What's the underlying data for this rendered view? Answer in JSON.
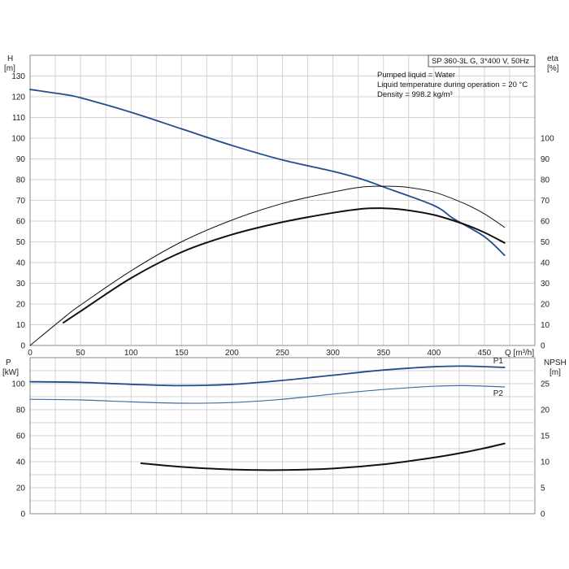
{
  "chart_data": [
    {
      "type": "line",
      "title": "SP 360-3L G, 3*400 V, 50Hz",
      "info_lines": [
        "Pumped liquid = Water",
        "Liquid temperature during operation = 20 °C",
        "Density = 998.2 kg/m³"
      ],
      "xlabel": "Q [m³/h]",
      "xlim": [
        0,
        500
      ],
      "x_ticks": [
        0,
        50,
        100,
        150,
        200,
        250,
        300,
        350,
        400,
        450
      ],
      "left_axis": {
        "label_line1": "H",
        "label_line2": "[m]",
        "lim": [
          0,
          140
        ],
        "ticks": [
          0,
          10,
          20,
          30,
          40,
          50,
          60,
          70,
          80,
          90,
          100,
          110,
          120,
          130
        ]
      },
      "right_axis": {
        "label_line1": "eta",
        "label_line2": "[%]",
        "lim": [
          0,
          140
        ],
        "ticks": [
          0,
          10,
          20,
          30,
          40,
          50,
          60,
          70,
          80,
          90,
          100
        ]
      },
      "grid": true,
      "series": [
        {
          "role": "head",
          "axis": "left",
          "color": "#1f4e8c",
          "width": 1.8,
          "points": [
            [
              0,
              123.5
            ],
            [
              35,
              121
            ],
            [
              50,
              119.5
            ],
            [
              100,
              112.5
            ],
            [
              150,
              104.5
            ],
            [
              200,
              96.5
            ],
            [
              250,
              89.5
            ],
            [
              300,
              84
            ],
            [
              330,
              80
            ],
            [
              350,
              76.5
            ],
            [
              400,
              67.5
            ],
            [
              420,
              61
            ],
            [
              450,
              52.5
            ],
            [
              470,
              43.5
            ]
          ]
        },
        {
          "role": "eta-thin",
          "axis": "right",
          "color": "#111111",
          "width": 1,
          "points": [
            [
              0,
              0
            ],
            [
              35,
              14
            ],
            [
              50,
              19.5
            ],
            [
              100,
              36
            ],
            [
              150,
              50
            ],
            [
              200,
              60.5
            ],
            [
              250,
              68.5
            ],
            [
              300,
              74
            ],
            [
              330,
              76.5
            ],
            [
              350,
              76.8
            ],
            [
              370,
              76.5
            ],
            [
              400,
              74
            ],
            [
              430,
              68.5
            ],
            [
              450,
              63.5
            ],
            [
              470,
              57
            ]
          ]
        },
        {
          "role": "eta-thick",
          "axis": "right",
          "color": "#111111",
          "width": 2,
          "points": [
            [
              33,
              11
            ],
            [
              50,
              16.5
            ],
            [
              100,
              32.5
            ],
            [
              150,
              45
            ],
            [
              200,
              53.5
            ],
            [
              250,
              59.5
            ],
            [
              300,
              64
            ],
            [
              330,
              66
            ],
            [
              350,
              66.2
            ],
            [
              370,
              65.5
            ],
            [
              400,
              63
            ],
            [
              430,
              58.5
            ],
            [
              450,
              54.5
            ],
            [
              470,
              49.5
            ]
          ]
        }
      ]
    },
    {
      "type": "line",
      "xlim": [
        0,
        500
      ],
      "left_axis": {
        "label_line1": "P",
        "label_line2": "[kW]",
        "lim": [
          0,
          120
        ],
        "ticks": [
          0,
          20,
          40,
          60,
          80,
          100
        ]
      },
      "right_axis": {
        "label_line1": "NPSH",
        "label_line2": "[m]",
        "lim": [
          0,
          30
        ],
        "ticks": [
          0,
          5,
          10,
          15,
          20,
          25
        ]
      },
      "grid": true,
      "series": [
        {
          "name": "P1",
          "axis": "left",
          "color": "#1f4e8c",
          "width": 1.8,
          "points": [
            [
              0,
              101.5
            ],
            [
              50,
              101
            ],
            [
              100,
              99.5
            ],
            [
              150,
              98.5
            ],
            [
              200,
              99.5
            ],
            [
              250,
              102.5
            ],
            [
              300,
              106.5
            ],
            [
              350,
              110.5
            ],
            [
              400,
              113
            ],
            [
              430,
              113.5
            ],
            [
              470,
              112.5
            ]
          ]
        },
        {
          "name": "P2",
          "axis": "left",
          "color": "#3d6ea3",
          "width": 1.2,
          "points": [
            [
              0,
              88
            ],
            [
              50,
              87.5
            ],
            [
              100,
              86
            ],
            [
              150,
              85
            ],
            [
              200,
              85.5
            ],
            [
              250,
              88
            ],
            [
              300,
              92
            ],
            [
              350,
              95.5
            ],
            [
              400,
              98
            ],
            [
              430,
              98.5
            ],
            [
              470,
              97.5
            ]
          ]
        },
        {
          "role": "npsh",
          "axis": "right",
          "color": "#111111",
          "width": 2,
          "points": [
            [
              110,
              9.7
            ],
            [
              150,
              9
            ],
            [
              200,
              8.5
            ],
            [
              250,
              8.4
            ],
            [
              300,
              8.7
            ],
            [
              350,
              9.5
            ],
            [
              400,
              10.8
            ],
            [
              430,
              11.8
            ],
            [
              450,
              12.6
            ],
            [
              470,
              13.5
            ]
          ]
        }
      ]
    }
  ]
}
